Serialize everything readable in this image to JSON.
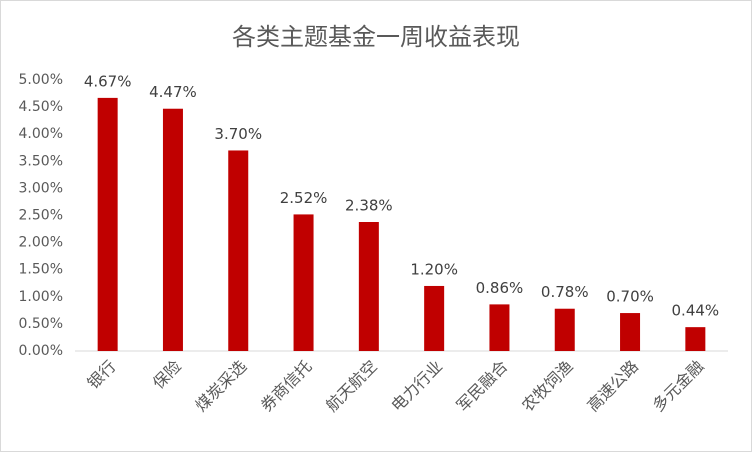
{
  "chart_data": {
    "type": "bar",
    "title": "各类主题基金一周收益表现",
    "categories": [
      "银行",
      "保险",
      "煤炭采选",
      "券商信托",
      "航天航空",
      "电力行业",
      "军民融合",
      "农牧饲渔",
      "高速公路",
      "多元金融"
    ],
    "values": [
      4.67,
      4.47,
      3.7,
      2.52,
      2.38,
      1.2,
      0.86,
      0.78,
      0.7,
      0.44
    ],
    "value_labels": [
      "4.67%",
      "4.47%",
      "3.70%",
      "2.52%",
      "2.38%",
      "1.20%",
      "0.86%",
      "0.78%",
      "0.70%",
      "0.44%"
    ],
    "color": "#c00000",
    "ylim": [
      0,
      5
    ],
    "yticks": [
      {
        "value": 0,
        "label": "0.00%"
      },
      {
        "value": 0.5,
        "label": "0.50%"
      },
      {
        "value": 1,
        "label": "1.00%"
      },
      {
        "value": 1.5,
        "label": "1.50%"
      },
      {
        "value": 2,
        "label": "2.00%"
      },
      {
        "value": 2.5,
        "label": "2.50%"
      },
      {
        "value": 3,
        "label": "3.00%"
      },
      {
        "value": 3.5,
        "label": "3.50%"
      },
      {
        "value": 4,
        "label": "4.00%"
      },
      {
        "value": 4.5,
        "label": "4.50%"
      },
      {
        "value": 5,
        "label": "5.00%"
      }
    ],
    "grid": false
  }
}
